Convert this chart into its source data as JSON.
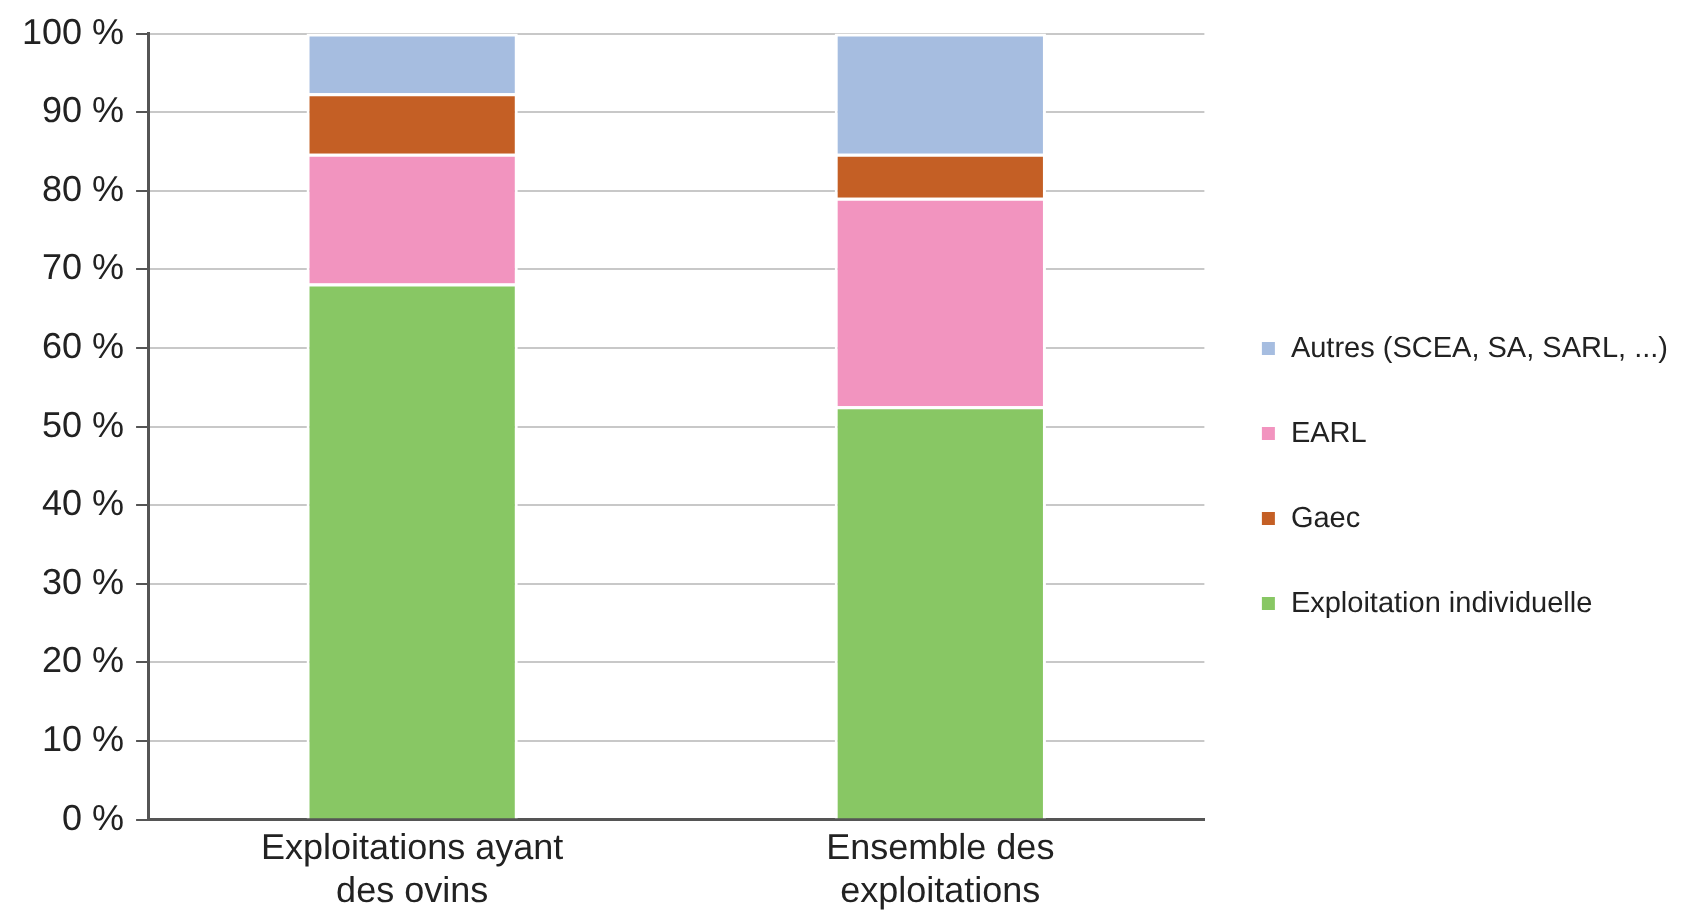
{
  "chart_data": {
    "type": "bar",
    "stacked": true,
    "categories": [
      "Exploitations ayant des ovins",
      "Ensemble des exploitations"
    ],
    "series": [
      {
        "name": "Exploitation individuelle",
        "color": "#88c764",
        "values": [
          68.2,
          52.6
        ]
      },
      {
        "name": "EARL",
        "color": "#f294bf",
        "values": [
          16.5,
          26.5
        ]
      },
      {
        "name": "Gaec",
        "color": "#c45f25",
        "values": [
          7.7,
          5.6
        ]
      },
      {
        "name": "Autres (SCEA, SA, SARL, ...)",
        "color": "#a6bde0",
        "values": [
          7.6,
          15.3
        ]
      }
    ],
    "ylim": [
      0,
      100
    ],
    "yticks": [
      {
        "value": 0,
        "label": "0 %"
      },
      {
        "value": 10,
        "label": "10 %"
      },
      {
        "value": 20,
        "label": "20 %"
      },
      {
        "value": 30,
        "label": "30 %"
      },
      {
        "value": 40,
        "label": "40 %"
      },
      {
        "value": 50,
        "label": "50 %"
      },
      {
        "value": 60,
        "label": "60 %"
      },
      {
        "value": 70,
        "label": "70 %"
      },
      {
        "value": 80,
        "label": "80 %"
      },
      {
        "value": 90,
        "label": "90 %"
      },
      {
        "value": 100,
        "label": "100 %"
      }
    ],
    "grid": "y",
    "legend": "right"
  }
}
